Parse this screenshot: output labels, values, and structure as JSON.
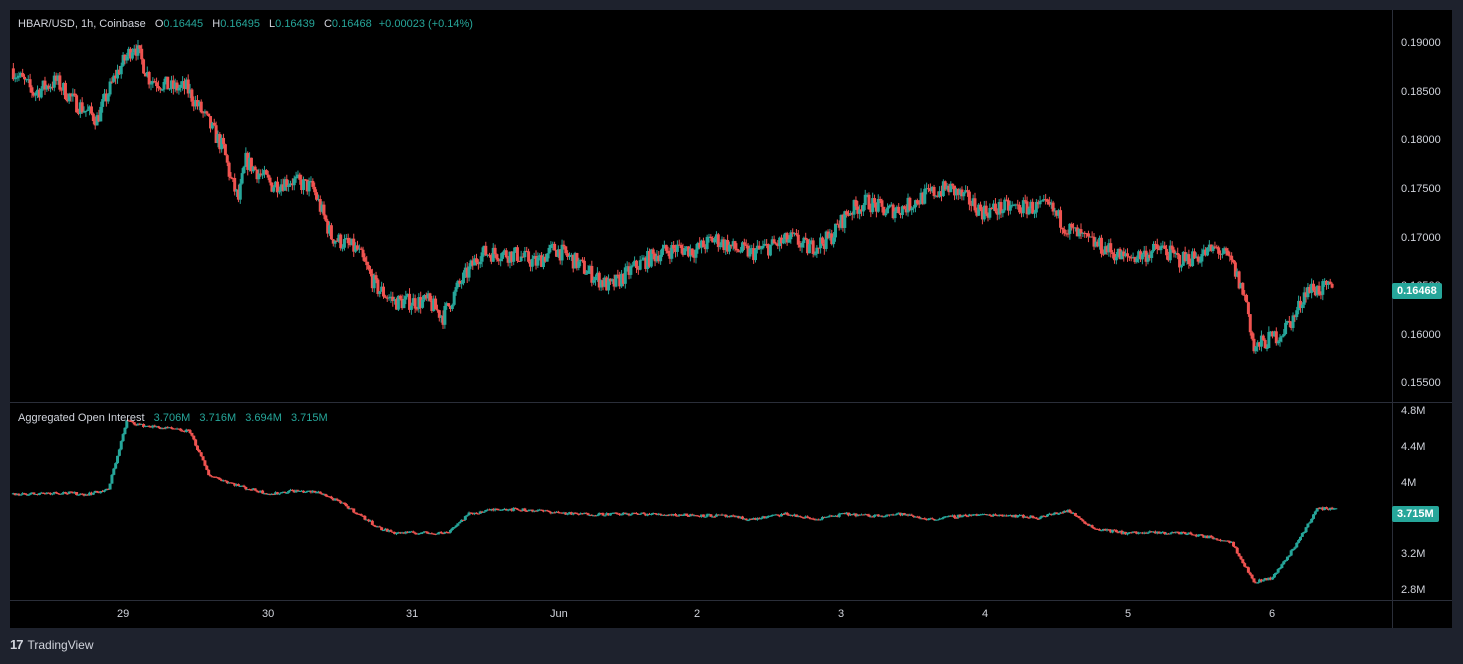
{
  "legend": {
    "symbol": "HBAR/USD, 1h, Coinbase",
    "o_label": "O",
    "o": "0.16445",
    "h_label": "H",
    "h": "0.16495",
    "l_label": "L",
    "l": "0.16439",
    "c_label": "C",
    "c": "0.16468",
    "change": "+0.00023 (+0.14%)"
  },
  "oi_legend": {
    "title": "Aggregated Open Interest",
    "v1": "3.706M",
    "v2": "3.716M",
    "v3": "3.694M",
    "v4": "3.715M"
  },
  "footer": {
    "brand": "TradingView",
    "logo": "17"
  },
  "colors": {
    "up": "#26a69a",
    "down": "#ef5350",
    "background": "#000000",
    "frame": "#1e222d"
  },
  "chart_data": [
    {
      "type": "candlestick",
      "title": "HBAR/USD, 1h, Coinbase",
      "x_labels": [
        "29",
        "30",
        "31",
        "Jun",
        "2",
        "3",
        "4",
        "5",
        "6"
      ],
      "y_ticks": [
        "0.19000",
        "0.18500",
        "0.18000",
        "0.17500",
        "0.17000",
        "0.16500",
        "0.16000",
        "0.15500"
      ],
      "ylim": [
        0.1532,
        0.1935
      ],
      "last_price": "0.16468",
      "close_path": [
        [
          0,
          0.1875
        ],
        [
          12,
          0.185
        ],
        [
          24,
          0.1862
        ],
        [
          34,
          0.184
        ],
        [
          46,
          0.1823
        ],
        [
          56,
          0.1868
        ],
        [
          66,
          0.19
        ],
        [
          74,
          0.1865
        ],
        [
          86,
          0.1855
        ],
        [
          94,
          0.1855
        ],
        [
          104,
          0.1825
        ],
        [
          114,
          0.1792
        ],
        [
          118,
          0.176
        ],
        [
          122,
          0.174
        ],
        [
          126,
          0.178
        ],
        [
          140,
          0.1755
        ],
        [
          150,
          0.176
        ],
        [
          162,
          0.1752
        ],
        [
          172,
          0.1702
        ],
        [
          186,
          0.1688
        ],
        [
          196,
          0.165
        ],
        [
          206,
          0.1635
        ],
        [
          224,
          0.1635
        ],
        [
          232,
          0.162
        ],
        [
          240,
          0.165
        ],
        [
          252,
          0.1685
        ],
        [
          262,
          0.1685
        ],
        [
          272,
          0.1683
        ],
        [
          282,
          0.1675
        ],
        [
          292,
          0.169
        ],
        [
          302,
          0.1678
        ],
        [
          312,
          0.1663
        ],
        [
          322,
          0.165
        ],
        [
          336,
          0.1672
        ],
        [
          348,
          0.1685
        ],
        [
          358,
          0.169
        ],
        [
          368,
          0.1688
        ],
        [
          378,
          0.17
        ],
        [
          388,
          0.169
        ],
        [
          398,
          0.1685
        ],
        [
          408,
          0.1692
        ],
        [
          420,
          0.17
        ],
        [
          428,
          0.169
        ],
        [
          440,
          0.17
        ],
        [
          450,
          0.1728
        ],
        [
          460,
          0.1738
        ],
        [
          470,
          0.1728
        ],
        [
          480,
          0.1732
        ],
        [
          492,
          0.1745
        ],
        [
          504,
          0.1752
        ],
        [
          514,
          0.174
        ],
        [
          522,
          0.1728
        ],
        [
          536,
          0.1732
        ],
        [
          548,
          0.1732
        ],
        [
          558,
          0.1732
        ],
        [
          568,
          0.171
        ],
        [
          578,
          0.1698
        ],
        [
          588,
          0.169
        ],
        [
          598,
          0.168
        ],
        [
          608,
          0.1683
        ],
        [
          618,
          0.169
        ],
        [
          628,
          0.1678
        ],
        [
          638,
          0.1682
        ],
        [
          648,
          0.169
        ],
        [
          656,
          0.1675
        ],
        [
          664,
          0.1635
        ],
        [
          668,
          0.1585
        ],
        [
          672,
          0.1592
        ],
        [
          682,
          0.1602
        ],
        [
          690,
          0.162
        ],
        [
          696,
          0.1648
        ],
        [
          710,
          0.1648
        ]
      ]
    },
    {
      "type": "candlestick",
      "title": "Aggregated Open Interest",
      "x_labels": [
        "29",
        "30",
        "31",
        "Jun",
        "2",
        "3",
        "4",
        "5",
        "6"
      ],
      "y_ticks": [
        "4.8M",
        "4.4M",
        "4M",
        "3.6M",
        "3.2M",
        "2.8M"
      ],
      "ylim": [
        2.7,
        4.9
      ],
      "last_value": "3.715M",
      "close_path": [
        [
          0,
          3.88
        ],
        [
          26,
          3.9
        ],
        [
          40,
          3.88
        ],
        [
          52,
          3.93
        ],
        [
          62,
          4.7
        ],
        [
          70,
          4.65
        ],
        [
          82,
          4.62
        ],
        [
          96,
          4.58
        ],
        [
          106,
          4.1
        ],
        [
          116,
          4.02
        ],
        [
          126,
          3.95
        ],
        [
          140,
          3.88
        ],
        [
          150,
          3.92
        ],
        [
          166,
          3.9
        ],
        [
          180,
          3.75
        ],
        [
          198,
          3.5
        ],
        [
          206,
          3.45
        ],
        [
          222,
          3.45
        ],
        [
          234,
          3.45
        ],
        [
          246,
          3.66
        ],
        [
          262,
          3.72
        ],
        [
          282,
          3.7
        ],
        [
          302,
          3.66
        ],
        [
          320,
          3.66
        ],
        [
          340,
          3.66
        ],
        [
          362,
          3.65
        ],
        [
          382,
          3.64
        ],
        [
          398,
          3.6
        ],
        [
          416,
          3.66
        ],
        [
          432,
          3.6
        ],
        [
          448,
          3.66
        ],
        [
          462,
          3.64
        ],
        [
          478,
          3.66
        ],
        [
          494,
          3.6
        ],
        [
          514,
          3.65
        ],
        [
          534,
          3.65
        ],
        [
          552,
          3.62
        ],
        [
          568,
          3.7
        ],
        [
          582,
          3.5
        ],
        [
          598,
          3.45
        ],
        [
          616,
          3.45
        ],
        [
          630,
          3.45
        ],
        [
          644,
          3.4
        ],
        [
          656,
          3.35
        ],
        [
          668,
          2.9
        ],
        [
          678,
          2.95
        ],
        [
          690,
          3.3
        ],
        [
          702,
          3.72
        ],
        [
          712,
          3.72
        ]
      ]
    }
  ]
}
